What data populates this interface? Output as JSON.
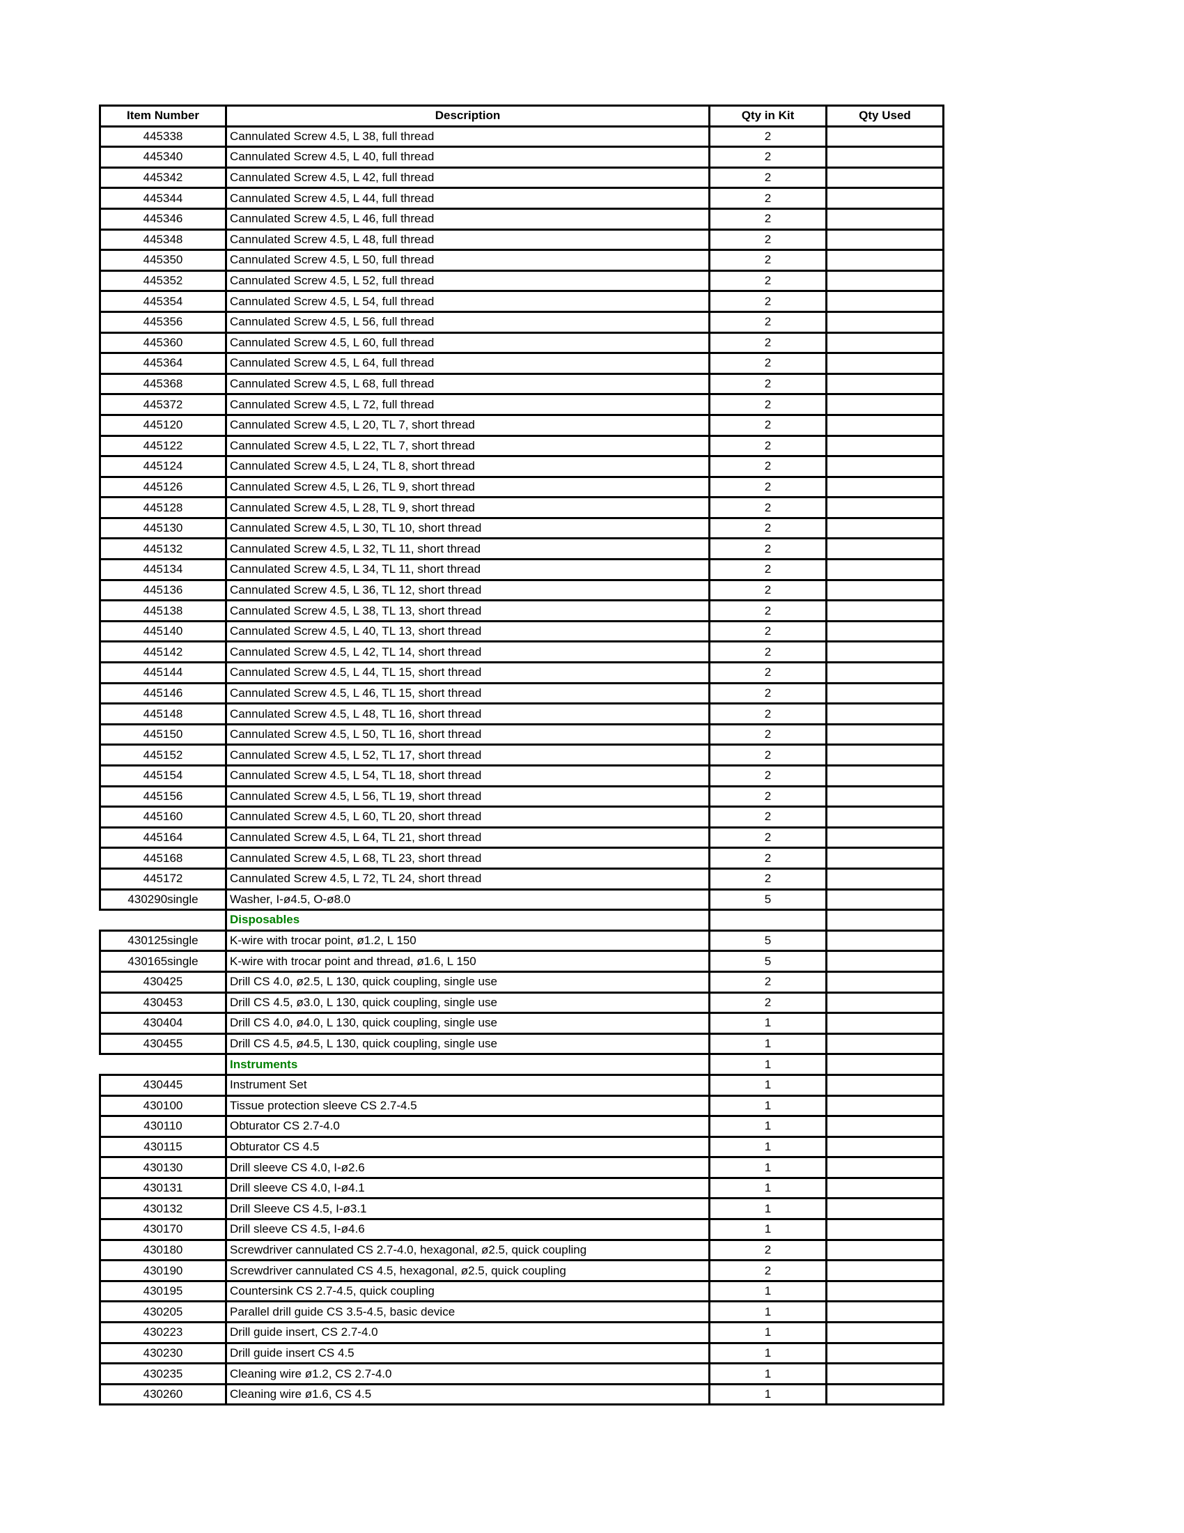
{
  "page": {
    "background": "#ffffff"
  },
  "table": {
    "headers": [
      "Item Number",
      "Description",
      "Qty in Kit",
      "Qty Used"
    ],
    "section_text_color": "#008000",
    "rows": [
      {
        "item": "445338",
        "desc": "Cannulated Screw 4.5, L 38, full thread",
        "qty": "2",
        "used": ""
      },
      {
        "item": "445340",
        "desc": "Cannulated Screw 4.5, L 40, full thread",
        "qty": "2",
        "used": ""
      },
      {
        "item": "445342",
        "desc": "Cannulated Screw 4.5, L 42, full thread",
        "qty": "2",
        "used": ""
      },
      {
        "item": "445344",
        "desc": "Cannulated Screw 4.5, L 44, full thread",
        "qty": "2",
        "used": ""
      },
      {
        "item": "445346",
        "desc": "Cannulated Screw 4.5, L 46, full thread",
        "qty": "2",
        "used": ""
      },
      {
        "item": "445348",
        "desc": "Cannulated Screw 4.5, L 48, full thread",
        "qty": "2",
        "used": ""
      },
      {
        "item": "445350",
        "desc": "Cannulated Screw 4.5, L 50, full thread",
        "qty": "2",
        "used": ""
      },
      {
        "item": "445352",
        "desc": "Cannulated Screw 4.5, L 52, full thread",
        "qty": "2",
        "used": ""
      },
      {
        "item": "445354",
        "desc": "Cannulated Screw 4.5, L 54, full thread",
        "qty": "2",
        "used": ""
      },
      {
        "item": "445356",
        "desc": "Cannulated Screw 4.5, L 56, full thread",
        "qty": "2",
        "used": ""
      },
      {
        "item": "445360",
        "desc": "Cannulated Screw 4.5, L 60, full thread",
        "qty": "2",
        "used": ""
      },
      {
        "item": "445364",
        "desc": "Cannulated Screw 4.5, L 64, full thread",
        "qty": "2",
        "used": ""
      },
      {
        "item": "445368",
        "desc": "Cannulated Screw 4.5, L 68, full thread",
        "qty": "2",
        "used": ""
      },
      {
        "item": "445372",
        "desc": "Cannulated Screw 4.5, L 72, full thread",
        "qty": "2",
        "used": ""
      },
      {
        "item": "445120",
        "desc": "Cannulated Screw 4.5, L 20, TL 7, short thread",
        "qty": "2",
        "used": ""
      },
      {
        "item": "445122",
        "desc": "Cannulated Screw 4.5, L 22, TL 7, short thread",
        "qty": "2",
        "used": ""
      },
      {
        "item": "445124",
        "desc": "Cannulated Screw 4.5, L 24, TL 8, short thread",
        "qty": "2",
        "used": ""
      },
      {
        "item": "445126",
        "desc": "Cannulated Screw 4.5, L 26, TL 9, short thread",
        "qty": "2",
        "used": ""
      },
      {
        "item": "445128",
        "desc": "Cannulated Screw 4.5, L 28, TL 9, short thread",
        "qty": "2",
        "used": ""
      },
      {
        "item": "445130",
        "desc": "Cannulated Screw 4.5, L 30, TL 10, short thread",
        "qty": "2",
        "used": ""
      },
      {
        "item": "445132",
        "desc": "Cannulated Screw 4.5, L 32, TL 11, short thread",
        "qty": "2",
        "used": ""
      },
      {
        "item": "445134",
        "desc": "Cannulated Screw 4.5, L 34, TL 11, short thread",
        "qty": "2",
        "used": ""
      },
      {
        "item": "445136",
        "desc": "Cannulated Screw 4.5, L 36, TL 12, short thread",
        "qty": "2",
        "used": ""
      },
      {
        "item": "445138",
        "desc": "Cannulated Screw 4.5, L 38, TL 13, short thread",
        "qty": "2",
        "used": ""
      },
      {
        "item": "445140",
        "desc": "Cannulated Screw 4.5, L 40, TL 13, short thread",
        "qty": "2",
        "used": ""
      },
      {
        "item": "445142",
        "desc": "Cannulated Screw 4.5, L 42, TL 14, short thread",
        "qty": "2",
        "used": ""
      },
      {
        "item": "445144",
        "desc": "Cannulated Screw 4.5, L 44, TL 15, short thread",
        "qty": "2",
        "used": ""
      },
      {
        "item": "445146",
        "desc": "Cannulated Screw 4.5, L 46, TL 15, short thread",
        "qty": "2",
        "used": ""
      },
      {
        "item": "445148",
        "desc": "Cannulated Screw 4.5, L 48, TL 16, short thread",
        "qty": "2",
        "used": ""
      },
      {
        "item": "445150",
        "desc": "Cannulated Screw 4.5, L 50, TL 16, short thread",
        "qty": "2",
        "used": ""
      },
      {
        "item": "445152",
        "desc": "Cannulated Screw 4.5, L 52, TL 17, short thread",
        "qty": "2",
        "used": ""
      },
      {
        "item": "445154",
        "desc": "Cannulated Screw 4.5, L 54, TL 18, short thread",
        "qty": "2",
        "used": ""
      },
      {
        "item": "445156",
        "desc": "Cannulated Screw 4.5, L 56, TL 19, short thread",
        "qty": "2",
        "used": ""
      },
      {
        "item": "445160",
        "desc": "Cannulated Screw 4.5, L 60, TL 20, short thread",
        "qty": "2",
        "used": ""
      },
      {
        "item": "445164",
        "desc": "Cannulated Screw 4.5, L 64, TL 21, short thread",
        "qty": "2",
        "used": ""
      },
      {
        "item": "445168",
        "desc": "Cannulated Screw 4.5, L 68, TL 23, short thread",
        "qty": "2",
        "used": ""
      },
      {
        "item": "445172",
        "desc": "Cannulated Screw 4.5, L 72, TL 24, short thread",
        "qty": "2",
        "used": ""
      },
      {
        "item": "430290single",
        "desc": "Washer, I-ø4.5, O-ø8.0",
        "qty": "5",
        "used": ""
      },
      {
        "item": "",
        "desc": "Disposables",
        "qty": "",
        "used": "",
        "section": true
      },
      {
        "item": "430125single",
        "desc": "K-wire with trocar point, ø1.2, L 150",
        "qty": "5",
        "used": ""
      },
      {
        "item": "430165single",
        "desc": "K-wire with trocar point and thread, ø1.6, L 150",
        "qty": "5",
        "used": ""
      },
      {
        "item": "430425",
        "desc": "Drill CS 4.0, ø2.5, L 130, quick coupling, single use",
        "qty": "2",
        "used": ""
      },
      {
        "item": "430453",
        "desc": "Drill CS 4.5, ø3.0, L 130, quick coupling, single use",
        "qty": "2",
        "used": ""
      },
      {
        "item": "430404",
        "desc": "Drill CS 4.0, ø4.0, L 130, quick coupling, single use",
        "qty": "1",
        "used": ""
      },
      {
        "item": "430455",
        "desc": "Drill CS 4.5, ø4.5, L 130, quick coupling, single use",
        "qty": "1",
        "used": ""
      },
      {
        "item": "",
        "desc": "Instruments",
        "qty": "1",
        "used": "",
        "section": true
      },
      {
        "item": "430445",
        "desc": "Instrument Set",
        "qty": "1",
        "used": ""
      },
      {
        "item": "430100",
        "desc": "Tissue protection sleeve CS 2.7-4.5",
        "qty": "1",
        "used": ""
      },
      {
        "item": "430110",
        "desc": "Obturator CS 2.7-4.0",
        "qty": "1",
        "used": ""
      },
      {
        "item": "430115",
        "desc": "Obturator CS 4.5",
        "qty": "1",
        "used": ""
      },
      {
        "item": "430130",
        "desc": "Drill sleeve CS 4.0, I-ø2.6",
        "qty": "1",
        "used": ""
      },
      {
        "item": "430131",
        "desc": "Drill sleeve CS 4.0, I-ø4.1",
        "qty": "1",
        "used": ""
      },
      {
        "item": "430132",
        "desc": "Drill Sleeve CS 4.5, I-ø3.1",
        "qty": "1",
        "used": ""
      },
      {
        "item": "430170",
        "desc": "Drill sleeve CS 4.5, I-ø4.6",
        "qty": "1",
        "used": ""
      },
      {
        "item": "430180",
        "desc": "Screwdriver cannulated CS 2.7-4.0, hexagonal, ø2.5, quick coupling",
        "qty": "2",
        "used": ""
      },
      {
        "item": "430190",
        "desc": "Screwdriver cannulated CS 4.5, hexagonal, ø2.5, quick coupling",
        "qty": "2",
        "used": ""
      },
      {
        "item": "430195",
        "desc": "Countersink CS 2.7-4.5, quick coupling",
        "qty": "1",
        "used": ""
      },
      {
        "item": "430205",
        "desc": "Parallel drill guide CS 3.5-4.5, basic device",
        "qty": "1",
        "used": ""
      },
      {
        "item": "430223",
        "desc": "Drill guide insert, CS 2.7-4.0",
        "qty": "1",
        "used": ""
      },
      {
        "item": "430230",
        "desc": "Drill guide insert CS 4.5",
        "qty": "1",
        "used": ""
      },
      {
        "item": "430235",
        "desc": "Cleaning wire ø1.2, CS 2.7-4.0",
        "qty": "1",
        "used": ""
      },
      {
        "item": "430260",
        "desc": "Cleaning wire ø1.6, CS 4.5",
        "qty": "1",
        "used": ""
      }
    ]
  }
}
